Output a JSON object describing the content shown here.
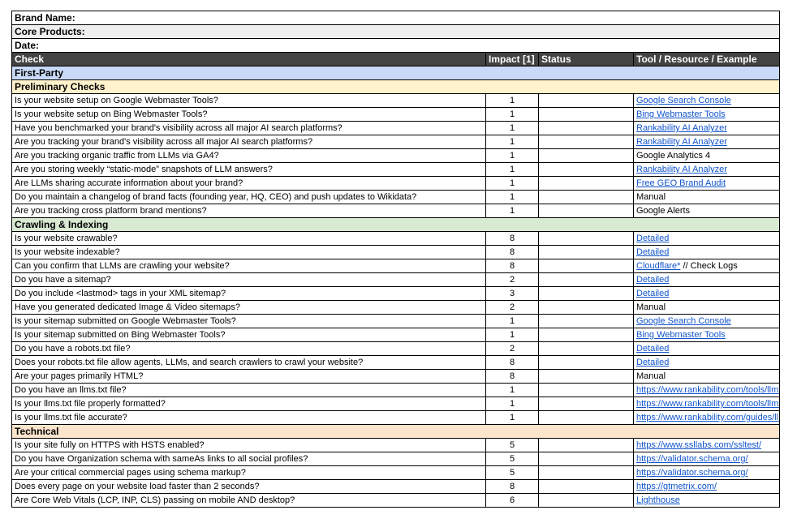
{
  "colors": {
    "header_bg": "#434343",
    "header_text": "#ffffff",
    "group_bg": "#c9daf8",
    "section_yellow_bg": "#fff2cc",
    "section_green_bg": "#d9ead3",
    "section_orange_bg": "#fce5cd",
    "meta_alt_bg": "#efefef",
    "link_color": "#1155cc",
    "border_color": "#000000"
  },
  "meta_rows": [
    {
      "id": "brand-name",
      "label": "Brand Name:",
      "shaded": false
    },
    {
      "id": "core-products",
      "label": "Core Products:",
      "shaded": true
    },
    {
      "id": "date",
      "label": "Date:",
      "shaded": false
    }
  ],
  "columns": [
    {
      "key": "check",
      "label": "Check"
    },
    {
      "key": "impact",
      "label": "Impact [1]"
    },
    {
      "key": "status",
      "label": "Status"
    },
    {
      "key": "tool",
      "label": "Tool / Resource / Example"
    }
  ],
  "group_header": {
    "label": "First-Party",
    "bg": "#c9daf8"
  },
  "sections": [
    {
      "key": "preliminary-checks",
      "title": "Preliminary Checks",
      "bg": "#fff2cc",
      "rows": [
        {
          "check": "Is your website setup on Google Webmaster Tools?",
          "impact": "1",
          "status": "",
          "tool": {
            "text": "Google Search Console",
            "is_link": true
          }
        },
        {
          "check": "Is your website setup on Bing Webmaster Tools?",
          "impact": "1",
          "status": "",
          "tool": {
            "text": "Bing Webmaster Tools",
            "is_link": true
          }
        },
        {
          "check": "Have you benchmarked your brand's visibility across all major AI search platforms?",
          "impact": "1",
          "status": "",
          "tool": {
            "text": "Rankability AI Analyzer",
            "is_link": true
          }
        },
        {
          "check": "Are you tracking your brand's visibility across all major AI search platforms?",
          "impact": "1",
          "status": "",
          "tool": {
            "text": "Rankability AI Analyzer",
            "is_link": true
          }
        },
        {
          "check": "Are you tracking organic traffic from LLMs via GA4?",
          "impact": "1",
          "status": "",
          "tool": {
            "text": "Google Analytics 4",
            "is_link": false
          }
        },
        {
          "check": "Are you storing weekly “static-mode” snapshots of LLM answers?",
          "impact": "1",
          "status": "",
          "tool": {
            "text": "Rankability AI Analyzer",
            "is_link": true
          }
        },
        {
          "check": "Are LLMs sharing accurate information about your brand?",
          "impact": "1",
          "status": "",
          "tool": {
            "text": "Free GEO Brand Audit",
            "is_link": true
          }
        },
        {
          "check": "Do you maintain a changelog of brand facts (founding year, HQ, CEO) and push updates to Wikidata?",
          "impact": "1",
          "status": "",
          "tool": {
            "text": "Manual",
            "is_link": false
          }
        },
        {
          "check": "Are you tracking cross platform brand mentions?",
          "impact": "1",
          "status": "",
          "tool": {
            "text": "Google Alerts",
            "is_link": false
          }
        }
      ]
    },
    {
      "key": "crawling-indexing",
      "title": "Crawling & Indexing",
      "bg": "#d9ead3",
      "rows": [
        {
          "check": "Is your website crawable?",
          "impact": "8",
          "status": "",
          "tool": {
            "text": "Detailed",
            "is_link": true
          }
        },
        {
          "check": "Is your website indexable?",
          "impact": "8",
          "status": "",
          "tool": {
            "text": "Detailed",
            "is_link": true
          }
        },
        {
          "check": "Can you confirm that LLMs are crawling your website?",
          "impact": "8",
          "status": "",
          "tool": {
            "text": "Cloudflare*",
            "is_link": true,
            "suffix": " // Check Logs"
          }
        },
        {
          "check": "Do you have a sitemap?",
          "impact": "2",
          "status": "",
          "tool": {
            "text": "Detailed",
            "is_link": true
          }
        },
        {
          "check": "Do you include <lastmod> tags in your XML sitemap?",
          "impact": "3",
          "status": "",
          "tool": {
            "text": "Detailed",
            "is_link": true
          }
        },
        {
          "check": "Have you generated dedicated Image & Video sitemaps?",
          "impact": "2",
          "status": "",
          "tool": {
            "text": "Manual",
            "is_link": false
          }
        },
        {
          "check": "Is your sitemap submitted on Google Webmaster Tools?",
          "impact": "1",
          "status": "",
          "tool": {
            "text": "Google Search Console",
            "is_link": true
          }
        },
        {
          "check": "Is your sitemap submitted on Bing Webmaster Tools?",
          "impact": "1",
          "status": "",
          "tool": {
            "text": "Bing Webmaster Tools",
            "is_link": true
          }
        },
        {
          "check": "Do you have a robots.txt file?",
          "impact": "2",
          "status": "",
          "tool": {
            "text": "Detailed",
            "is_link": true
          }
        },
        {
          "check": "Does your robots.txt file allow agents, LLMs, and search crawlers to crawl your website?",
          "impact": "8",
          "status": "",
          "tool": {
            "text": "Detailed",
            "is_link": true
          }
        },
        {
          "check": "Are your pages primarily HTML?",
          "impact": "8",
          "status": "",
          "tool": {
            "text": "Manual",
            "is_link": false
          }
        },
        {
          "check": "Do you have an llms.txt file?",
          "impact": "1",
          "status": "",
          "tool": {
            "text": "https://www.rankability.com/tools/llms-g",
            "is_link": true
          }
        },
        {
          "check": "Is your llms.txt file properly formatted?",
          "impact": "1",
          "status": "",
          "tool": {
            "text": "https://www.rankability.com/tools/llms-tx",
            "is_link": true
          }
        },
        {
          "check": "Is your llms.txt file accurate?",
          "impact": "1",
          "status": "",
          "tool": {
            "text": "https://www.rankability.com/guides/llms",
            "is_link": true
          }
        }
      ]
    },
    {
      "key": "technical",
      "title": "Technical",
      "bg": "#fce5cd",
      "rows": [
        {
          "check": "Is your site fully on HTTPS with HSTS enabled?",
          "impact": "5",
          "status": "",
          "tool": {
            "text": "https://www.ssllabs.com/ssltest/",
            "is_link": true
          }
        },
        {
          "check": "Do you have Organization schema with sameAs links to all social profiles?",
          "impact": "5",
          "status": "",
          "tool": {
            "text": "https://validator.schema.org/",
            "is_link": true
          }
        },
        {
          "check": "Are your critical commercial pages using schema markup?",
          "impact": "5",
          "status": "",
          "tool": {
            "text": "https://validator.schema.org/",
            "is_link": true
          }
        },
        {
          "check": "Does every page on your website load faster than 2 seconds?",
          "impact": "8",
          "status": "",
          "tool": {
            "text": "https://gtmetrix.com/",
            "is_link": true
          }
        },
        {
          "check": "Are Core Web Vitals (LCP, INP, CLS) passing on mobile AND desktop?",
          "impact": "6",
          "status": "",
          "tool": {
            "text": "Lighthouse",
            "is_link": true
          }
        }
      ]
    }
  ]
}
